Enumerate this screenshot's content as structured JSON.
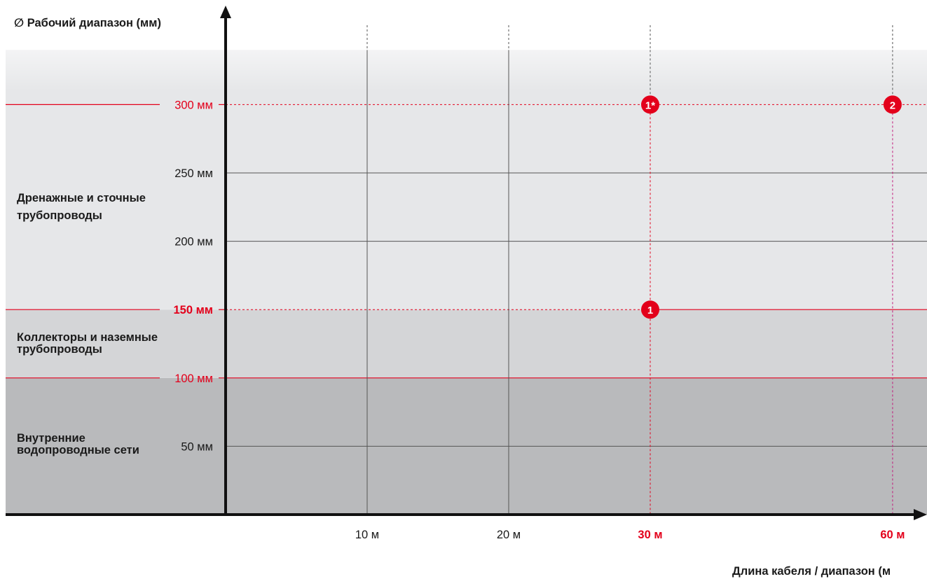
{
  "chart_data": {
    "type": "scatter",
    "y_title": "∅ Рабочий диапазон (мм)",
    "x_title": "Длина кабеля / диапазон (м",
    "x_ticks": [
      {
        "value": 10,
        "label": "10 м",
        "highlight": false
      },
      {
        "value": 20,
        "label": "20 м",
        "highlight": false
      },
      {
        "value": 30,
        "label": "30 м",
        "highlight": true
      },
      {
        "value": 60,
        "label": "60 м",
        "highlight": true
      }
    ],
    "y_ticks": [
      {
        "value": 50,
        "label": "50 мм",
        "highlight": false,
        "bold": false
      },
      {
        "value": 100,
        "label": "100 мм",
        "highlight": true,
        "bold": false
      },
      {
        "value": 150,
        "label": "150 мм",
        "highlight": true,
        "bold": true
      },
      {
        "value": 200,
        "label": "200 мм",
        "highlight": false,
        "bold": false
      },
      {
        "value": 250,
        "label": "250 мм",
        "highlight": false,
        "bold": false
      },
      {
        "value": 300,
        "label": "300 мм",
        "highlight": true,
        "bold": false
      }
    ],
    "bands": [
      {
        "from": 0,
        "to": 100,
        "label": "Внутренние водопроводные сети",
        "color": "#b9babc"
      },
      {
        "from": 100,
        "to": 150,
        "label": "Коллекторы и наземные трубопроводы",
        "color": "#d4d5d7"
      },
      {
        "from": 150,
        "to": 340,
        "label": "Дренажные и сточные трубопроводы",
        "color": "#e6e7e9"
      }
    ],
    "points": [
      {
        "x": 30,
        "y": 150,
        "label": "1"
      },
      {
        "x": 30,
        "y": 300,
        "label": "1*"
      },
      {
        "x": 60,
        "y": 300,
        "label": "2"
      }
    ],
    "colors": {
      "accent": "#e3001b",
      "accent_alt": "#c2187a",
      "axis": "#111111",
      "grid": "#555555",
      "text": "#1a1a1a"
    }
  }
}
